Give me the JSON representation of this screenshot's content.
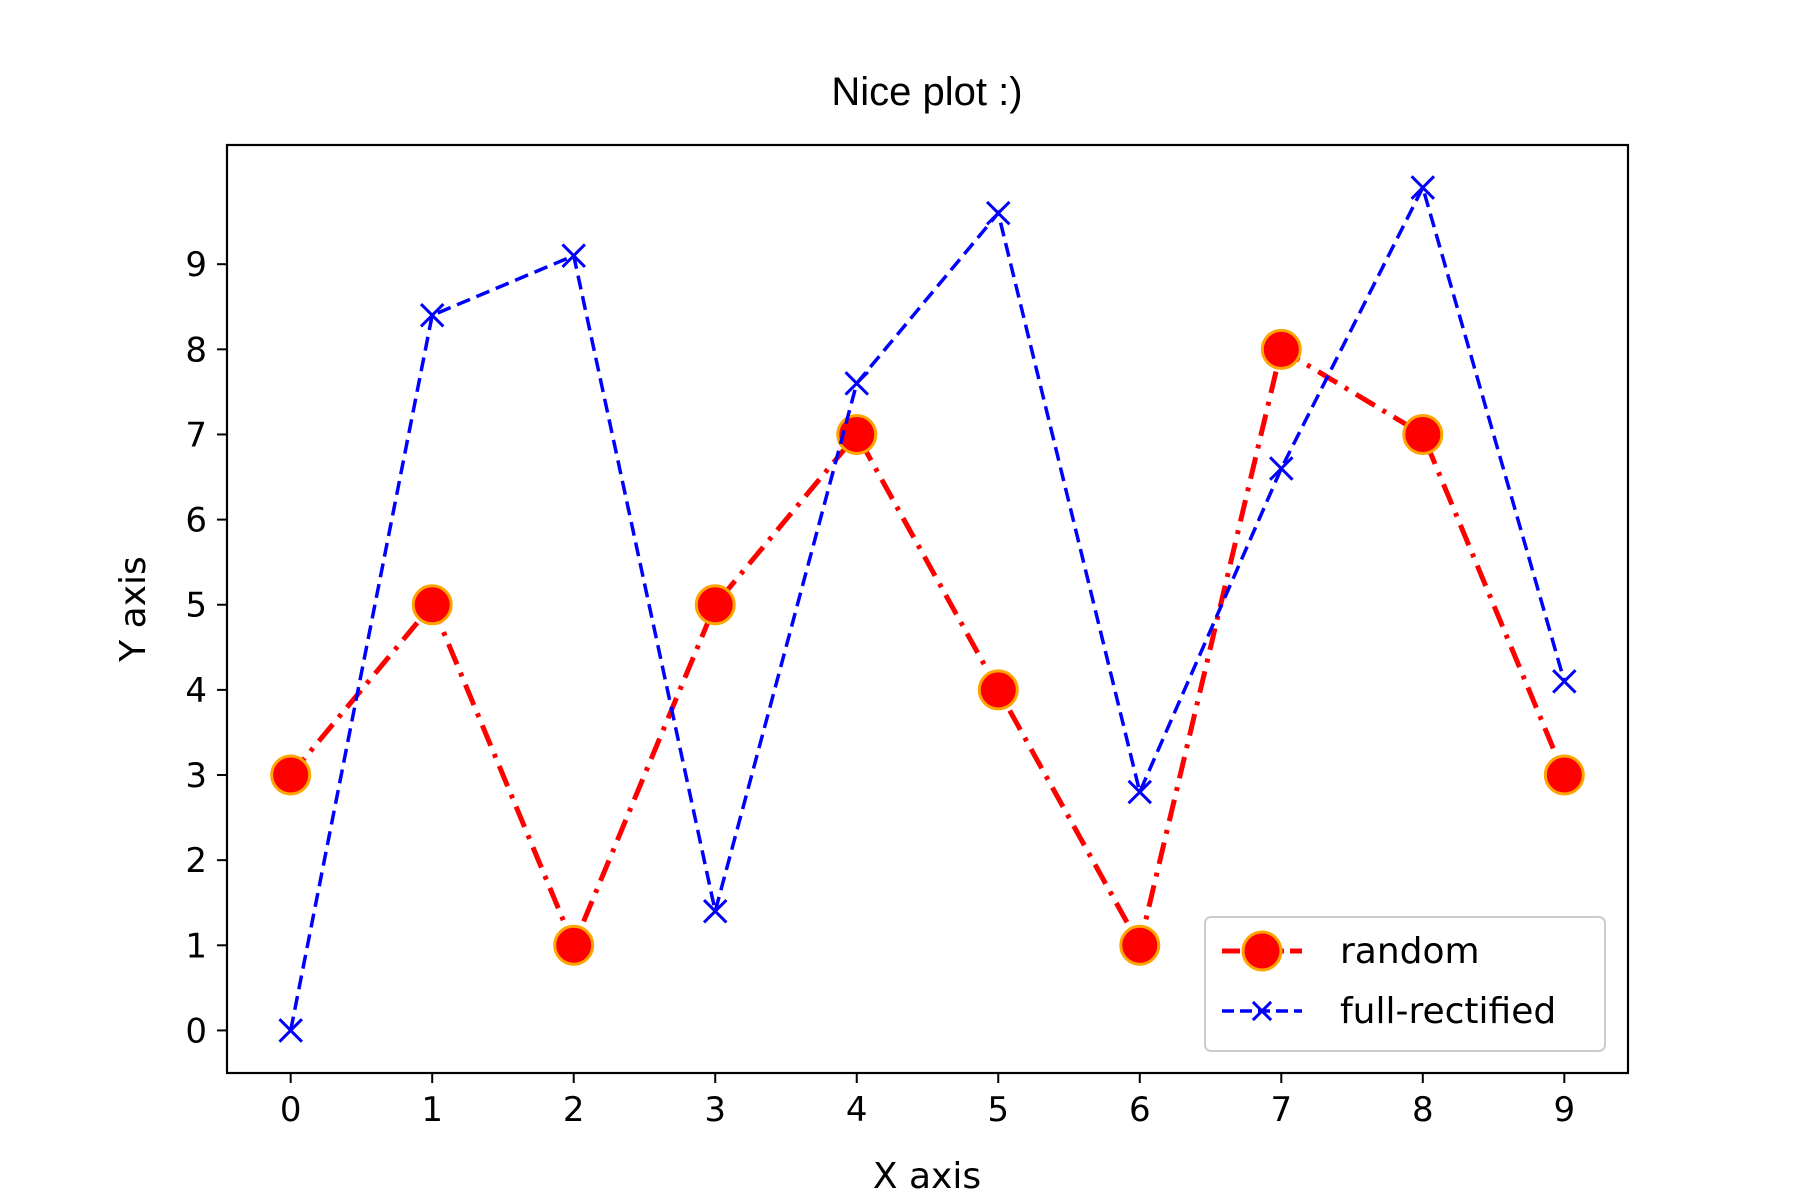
{
  "chart_data": {
    "type": "line",
    "title": "Nice plot :)",
    "xlabel": "X axis",
    "ylabel": "Y axis",
    "x": [
      0,
      1,
      2,
      3,
      4,
      5,
      6,
      7,
      8,
      9
    ],
    "xlim": [
      -0.45,
      9.45
    ],
    "ylim": [
      -0.5,
      10.4
    ],
    "xticks": [
      "0",
      "1",
      "2",
      "3",
      "4",
      "5",
      "6",
      "7",
      "8",
      "9"
    ],
    "yticks": [
      "0",
      "1",
      "2",
      "3",
      "4",
      "5",
      "6",
      "7",
      "8",
      "9"
    ],
    "grid": false,
    "legend_position": "lower-right",
    "series": [
      {
        "name": "random",
        "values": [
          3,
          5,
          1,
          5,
          7,
          4,
          1,
          8,
          7,
          3
        ],
        "color": "#ff0000",
        "marker": "circle",
        "marker_edge_color": "#ffa500",
        "line_style": "dash-dot"
      },
      {
        "name": "full-rectified",
        "values": [
          0,
          8.4,
          9.1,
          1.4,
          7.6,
          9.6,
          2.8,
          6.6,
          9.9,
          4.1
        ],
        "color": "#0000ff",
        "marker": "x",
        "line_style": "dashed"
      }
    ]
  }
}
